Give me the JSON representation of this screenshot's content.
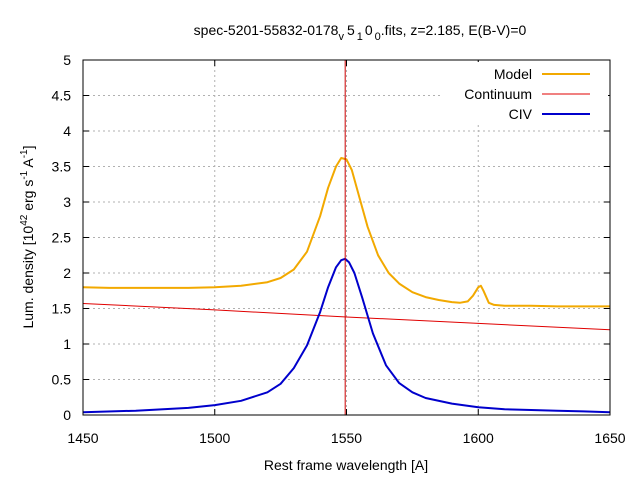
{
  "chart_data": {
    "type": "line",
    "title": "spec-5201-55832-0178",
    "title_sub": "v",
    "title_mid1": "5",
    "title_sub1": "1",
    "title_mid2": "0",
    "title_sub2": "0",
    "title_tail": ".fits, z=2.185, E(B-V)=0",
    "xlabel": "Rest frame wavelength [A]",
    "ylabel": {
      "p1": "Lum. density [10",
      "exp1": "42",
      "p2": " erg s",
      "exp2": "-1",
      "p3": " A",
      "exp3": "-1",
      "p4": "]"
    },
    "xlim": [
      1450,
      1650
    ],
    "ylim": [
      0,
      5
    ],
    "xticks": [
      1450,
      1500,
      1550,
      1600,
      1650
    ],
    "yticks": [
      0,
      0.5,
      1,
      1.5,
      2,
      2.5,
      3,
      3.5,
      4,
      4.5,
      5
    ],
    "grid": true,
    "legend_position": "top-right",
    "vertical_marker": {
      "x": 1549.5,
      "color": "#cc0000"
    },
    "series": [
      {
        "name": "Model",
        "color": "#f2a900",
        "x": [
          1450,
          1460,
          1470,
          1480,
          1490,
          1500,
          1510,
          1520,
          1525,
          1530,
          1535,
          1540,
          1543,
          1546,
          1548,
          1550,
          1552,
          1555,
          1558,
          1562,
          1566,
          1570,
          1575,
          1580,
          1585,
          1590,
          1593,
          1596,
          1598,
          1600,
          1601,
          1602,
          1604,
          1606,
          1610,
          1620,
          1630,
          1640,
          1650
        ],
        "values": [
          1.8,
          1.79,
          1.79,
          1.79,
          1.79,
          1.8,
          1.82,
          1.87,
          1.93,
          2.05,
          2.3,
          2.8,
          3.2,
          3.5,
          3.62,
          3.6,
          3.45,
          3.05,
          2.65,
          2.25,
          2.0,
          1.85,
          1.73,
          1.66,
          1.62,
          1.59,
          1.58,
          1.6,
          1.68,
          1.8,
          1.82,
          1.75,
          1.58,
          1.55,
          1.54,
          1.54,
          1.53,
          1.53,
          1.53
        ]
      },
      {
        "name": "Continuum",
        "color": "#e00000",
        "x": [
          1450,
          1500,
          1550,
          1600,
          1650
        ],
        "values": [
          1.57,
          1.48,
          1.38,
          1.29,
          1.2
        ]
      },
      {
        "name": "CIV",
        "color": "#0000cc",
        "x": [
          1450,
          1470,
          1490,
          1500,
          1510,
          1520,
          1525,
          1530,
          1535,
          1540,
          1543,
          1546,
          1548,
          1549.5,
          1551,
          1553,
          1556,
          1560,
          1565,
          1570,
          1575,
          1580,
          1590,
          1600,
          1610,
          1620,
          1630,
          1640,
          1650
        ],
        "values": [
          0.04,
          0.06,
          0.1,
          0.14,
          0.2,
          0.32,
          0.44,
          0.66,
          0.98,
          1.45,
          1.8,
          2.08,
          2.18,
          2.2,
          2.15,
          2.0,
          1.65,
          1.15,
          0.7,
          0.45,
          0.32,
          0.24,
          0.16,
          0.11,
          0.08,
          0.07,
          0.06,
          0.05,
          0.04
        ]
      }
    ]
  }
}
